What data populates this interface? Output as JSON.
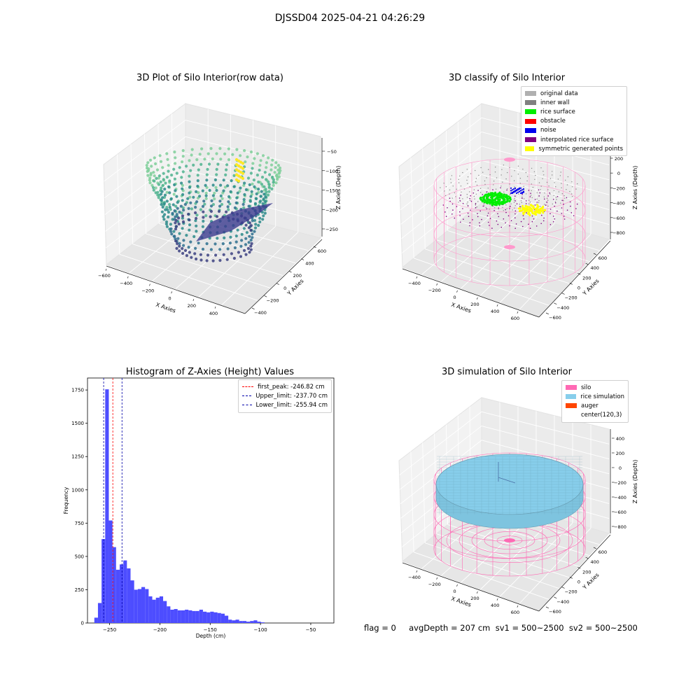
{
  "suptitle": "DJSSD04 2025-04-21 04:26:29",
  "footer": "flag = 0     avgDepth = 207 cm  sv1 = 500~2500  sv2 = 500~2500",
  "chart_data": [
    {
      "type": "scatter",
      "title": "3D Plot of Silo Interior(row data)",
      "xlabel": "X Axies",
      "ylabel": "Y Axies",
      "zlabel": "Z Axies (Depth)",
      "x_ticks": [
        "−600",
        "−400",
        "−200",
        "0",
        "200",
        "400"
      ],
      "y_ticks": [
        "−400",
        "−200",
        "0",
        "200",
        "400",
        "600"
      ],
      "z_ticks": [
        "−50",
        "−100",
        "−150",
        "−200",
        "−250"
      ],
      "colormap": "viridis"
    },
    {
      "type": "scatter",
      "title": "3D classify of Silo Interior",
      "xlabel": "X Axies",
      "ylabel": "Y Axies",
      "zlabel": "Z Axies (Depth)",
      "x_ticks": [
        "−400",
        "−200",
        "0",
        "200",
        "400",
        "600"
      ],
      "y_ticks": [
        "−600",
        "−400",
        "−200",
        "0",
        "200",
        "400",
        "600"
      ],
      "z_ticks": [
        "200",
        "0",
        "−200",
        "−400",
        "−600",
        "−800"
      ],
      "legend": [
        {
          "label": "original data",
          "color": "#b0b0b0"
        },
        {
          "label": "inner wall",
          "color": "#808080"
        },
        {
          "label": "rice surface",
          "color": "#00ee00"
        },
        {
          "label": "obstacle",
          "color": "#ff0000"
        },
        {
          "label": "noise",
          "color": "#0000ee"
        },
        {
          "label": "interpolated rice surface",
          "color": "#800080"
        },
        {
          "label": "symmetric generated points",
          "color": "#ffff00"
        }
      ]
    },
    {
      "type": "bar",
      "title": "Histogram of Z-Axies (Height) Values",
      "xlabel": "Depth (cm)",
      "ylabel": "Frequency",
      "xlim": [
        -272,
        -27
      ],
      "ylim": [
        0,
        1840
      ],
      "x_ticks": [
        -250,
        -200,
        -150,
        -100,
        -50
      ],
      "y_ticks": [
        0,
        250,
        500,
        750,
        1000,
        1250,
        1500,
        1750
      ],
      "bin_width": 3.6,
      "bins_start": -265.2,
      "values": [
        40,
        150,
        630,
        1755,
        770,
        570,
        400,
        440,
        470,
        410,
        320,
        250,
        255,
        270,
        255,
        200,
        175,
        190,
        200,
        165,
        125,
        100,
        105,
        95,
        95,
        100,
        95,
        90,
        90,
        100,
        85,
        80,
        85,
        80,
        75,
        70,
        55,
        25,
        20,
        25,
        15,
        15,
        10,
        15,
        20,
        10,
        5
      ],
      "bar_color": "#4d4dff",
      "vlines": [
        {
          "label": "first_peak: -246.82 cm",
          "x": -246.82,
          "color": "#ff0000"
        },
        {
          "label": "Upper_limit: -237.70 cm",
          "x": -237.7,
          "color": "#0000aa"
        },
        {
          "label": "Lower_limit: -255.94 cm",
          "x": -255.94,
          "color": "#0000aa"
        }
      ]
    },
    {
      "type": "scatter",
      "title": "3D simulation of Silo Interior",
      "xlabel": "X Axies",
      "ylabel": "Y Axies",
      "zlabel": "Z Axies (Depth)",
      "x_ticks": [
        "−400",
        "−200",
        "0",
        "200",
        "400",
        "600"
      ],
      "y_ticks": [
        "−600",
        "−400",
        "−200",
        "0",
        "200",
        "400",
        "600"
      ],
      "z_ticks": [
        "400",
        "200",
        "0",
        "−200",
        "−400",
        "−600",
        "−800"
      ],
      "legend": [
        {
          "label": "silo",
          "color": "#ff69b4"
        },
        {
          "label": "rice simulation",
          "color": "#87ceeb"
        },
        {
          "label": "auger",
          "color": "#ff4500"
        },
        {
          "label": "center(120,3)",
          "color": "#ffffff"
        }
      ]
    }
  ]
}
